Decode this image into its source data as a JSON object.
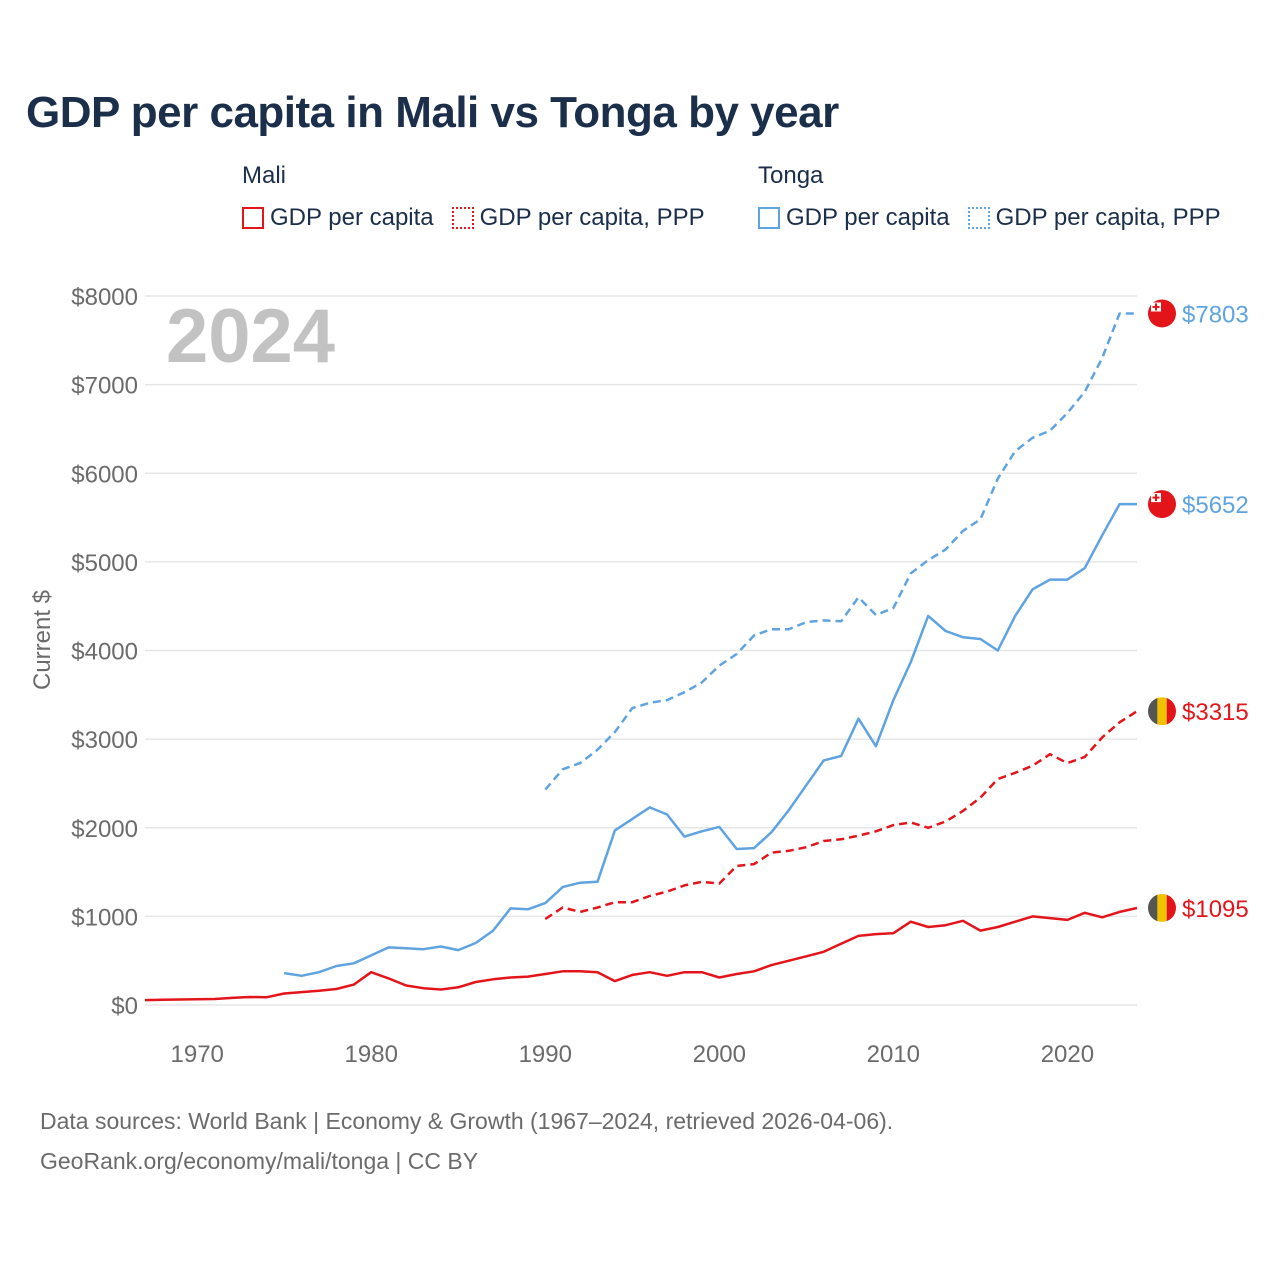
{
  "title": "GDP per capita in Mali vs Tonga by year",
  "legend": [
    {
      "country": "Mali",
      "items": [
        {
          "label": "GDP per capita",
          "style": "solid",
          "color": "#e3151b"
        },
        {
          "label": "GDP per capita, PPP",
          "style": "dotted",
          "color": "#e3151b"
        }
      ]
    },
    {
      "country": "Tonga",
      "items": [
        {
          "label": "GDP per capita",
          "style": "solid",
          "color": "#5fa3e0"
        },
        {
          "label": "GDP per capita, PPP",
          "style": "dotted",
          "color": "#5fa3e0"
        }
      ]
    }
  ],
  "year_label": "2024",
  "footer": {
    "line1": "Data sources: World Bank | Economy & Growth (1967–2024, retrieved 2026-04-06).",
    "line2": "GeoRank.org/economy/mali/tonga | CC BY"
  },
  "chart_data": {
    "type": "line",
    "title": "GDP per capita in Mali vs Tonga by year",
    "xlabel": "",
    "ylabel": "Current $",
    "xlim": [
      1967,
      2024
    ],
    "ylim": [
      0,
      8000
    ],
    "x_ticks": [
      1970,
      1980,
      1990,
      2000,
      2010,
      2020
    ],
    "y_ticks": [
      0,
      1000,
      2000,
      3000,
      4000,
      5000,
      6000,
      7000,
      8000
    ],
    "y_tick_labels": [
      "$0",
      "$1000",
      "$2000",
      "$3000",
      "$4000",
      "$5000",
      "$6000",
      "$7000",
      "$8000"
    ],
    "grid": true,
    "series": [
      {
        "name": "Tonga GDP per capita, PPP",
        "country": "Tonga",
        "color": "#5fa3e0",
        "dash": true,
        "end_label": "$7803",
        "x": [
          1990,
          1991,
          1992,
          1993,
          1994,
          1995,
          1996,
          1997,
          1998,
          1999,
          2000,
          2001,
          2002,
          2003,
          2004,
          2005,
          2006,
          2007,
          2008,
          2009,
          2010,
          2011,
          2012,
          2013,
          2014,
          2015,
          2016,
          2017,
          2018,
          2019,
          2020,
          2021,
          2022,
          2023,
          2024
        ],
        "values": [
          2430,
          2660,
          2730,
          2880,
          3080,
          3350,
          3410,
          3440,
          3530,
          3640,
          3830,
          3960,
          4170,
          4240,
          4240,
          4320,
          4340,
          4330,
          4600,
          4400,
          4480,
          4870,
          5020,
          5140,
          5350,
          5480,
          5940,
          6250,
          6400,
          6480,
          6680,
          6920,
          7300,
          7803,
          7803
        ]
      },
      {
        "name": "Tonga GDP per capita",
        "country": "Tonga",
        "color": "#5fa3e0",
        "dash": false,
        "end_label": "$5652",
        "x": [
          1975,
          1976,
          1977,
          1978,
          1979,
          1980,
          1981,
          1982,
          1983,
          1984,
          1985,
          1986,
          1987,
          1988,
          1989,
          1990,
          1991,
          1992,
          1993,
          1994,
          1995,
          1996,
          1997,
          1998,
          1999,
          2000,
          2001,
          2002,
          2003,
          2004,
          2005,
          2006,
          2007,
          2008,
          2009,
          2010,
          2011,
          2012,
          2013,
          2014,
          2015,
          2016,
          2017,
          2018,
          2019,
          2020,
          2021,
          2022,
          2023,
          2024
        ],
        "values": [
          360,
          330,
          370,
          440,
          470,
          560,
          650,
          640,
          630,
          660,
          620,
          700,
          840,
          1090,
          1080,
          1150,
          1330,
          1380,
          1390,
          1970,
          2100,
          2230,
          2150,
          1900,
          1960,
          2010,
          1760,
          1770,
          1950,
          2200,
          2480,
          2760,
          2810,
          3230,
          2920,
          3440,
          3870,
          4390,
          4220,
          4150,
          4130,
          4000,
          4390,
          4690,
          4800,
          4800,
          4930,
          5300,
          5652,
          5652
        ]
      },
      {
        "name": "Mali GDP per capita, PPP",
        "country": "Mali",
        "color": "#e3151b",
        "dash": true,
        "end_label": "$3315",
        "x": [
          1990,
          1991,
          1992,
          1993,
          1994,
          1995,
          1996,
          1997,
          1998,
          1999,
          2000,
          2001,
          2002,
          2003,
          2004,
          2005,
          2006,
          2007,
          2008,
          2009,
          2010,
          2011,
          2012,
          2013,
          2014,
          2015,
          2016,
          2017,
          2018,
          2019,
          2020,
          2021,
          2022,
          2023,
          2024
        ],
        "values": [
          970,
          1100,
          1050,
          1100,
          1160,
          1160,
          1230,
          1280,
          1350,
          1390,
          1370,
          1570,
          1590,
          1720,
          1740,
          1780,
          1850,
          1870,
          1910,
          1960,
          2030,
          2060,
          2000,
          2070,
          2190,
          2340,
          2550,
          2620,
          2700,
          2830,
          2730,
          2800,
          3020,
          3190,
          3315
        ]
      },
      {
        "name": "Mali GDP per capita",
        "country": "Mali",
        "color": "#e3151b",
        "dash": false,
        "end_label": "$1095",
        "x": [
          1967,
          1968,
          1969,
          1970,
          1971,
          1972,
          1973,
          1974,
          1975,
          1976,
          1977,
          1978,
          1979,
          1980,
          1981,
          1982,
          1983,
          1984,
          1985,
          1986,
          1987,
          1988,
          1989,
          1990,
          1991,
          1992,
          1993,
          1994,
          1995,
          1996,
          1997,
          1998,
          1999,
          2000,
          2001,
          2002,
          2003,
          2004,
          2005,
          2006,
          2007,
          2008,
          2009,
          2010,
          2011,
          2012,
          2013,
          2014,
          2015,
          2016,
          2017,
          2018,
          2019,
          2020,
          2021,
          2022,
          2023,
          2024
        ],
        "values": [
          55,
          60,
          62,
          65,
          68,
          80,
          90,
          88,
          130,
          145,
          160,
          180,
          230,
          370,
          300,
          220,
          190,
          175,
          200,
          260,
          290,
          310,
          320,
          350,
          380,
          380,
          370,
          270,
          340,
          370,
          330,
          370,
          370,
          310,
          350,
          380,
          450,
          500,
          550,
          600,
          690,
          780,
          800,
          810,
          940,
          880,
          900,
          950,
          840,
          880,
          940,
          1000,
          980,
          960,
          1040,
          990,
          1050,
          1095
        ]
      }
    ]
  }
}
